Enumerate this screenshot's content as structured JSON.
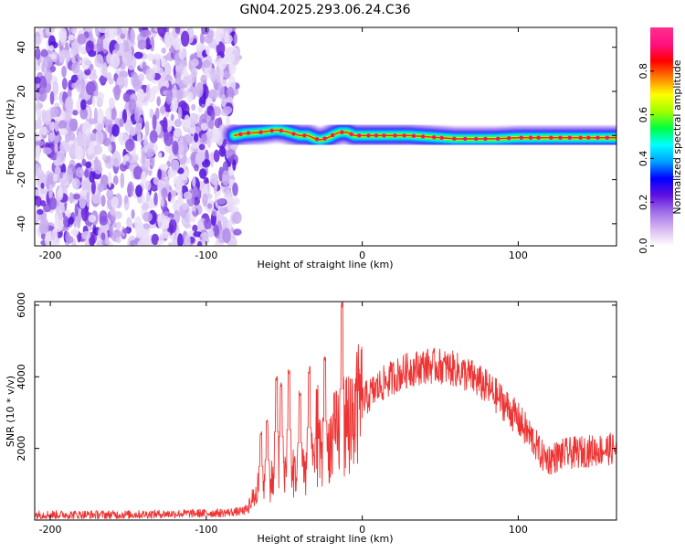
{
  "chart_data": [
    {
      "type": "heatmap",
      "title": "GN04.2025.293.06.24.C36",
      "xlabel": "Height of straight line (km)",
      "ylabel": "Frequency (Hz)",
      "xlim": [
        -210,
        163
      ],
      "ylim": [
        -50,
        49
      ],
      "xticks": [
        -200,
        -100,
        0,
        100
      ],
      "xtick_labels": [
        "-200",
        "-100",
        "0",
        "100"
      ],
      "yticks": [
        -40,
        -20,
        0,
        20,
        40
      ],
      "ytick_labels": [
        "-40",
        "-20",
        "0",
        "20",
        "40"
      ],
      "noise_region_x": [
        -210,
        -80
      ],
      "ridge": {
        "x": [
          -82,
          -75,
          -65,
          -55,
          -50,
          -45,
          -40,
          -35,
          -30,
          -27,
          -22,
          -18,
          -14,
          -10,
          -5,
          0,
          10,
          30,
          50,
          60,
          80,
          85,
          100,
          120,
          163
        ],
        "freq": [
          0,
          1,
          1.5,
          2.5,
          2,
          1,
          0,
          0,
          -1.5,
          -2,
          -1,
          0.5,
          1.5,
          1.5,
          0,
          0,
          0,
          0,
          -1,
          -1.5,
          -1.5,
          -1.5,
          -1,
          -1,
          -1
        ]
      },
      "colorbar": {
        "label": "Normalized spectral amplitude",
        "range": [
          0,
          1
        ],
        "ticks": [
          0,
          0.2,
          0.4,
          0.6,
          0.8
        ],
        "tick_labels": [
          "0.0",
          "0.2",
          "0.4",
          "0.6",
          "0.8"
        ],
        "colors": [
          "#ffffff",
          "#d8b8f0",
          "#a070e8",
          "#6010e0",
          "#0000ff",
          "#00a0ff",
          "#00ffff",
          "#00ff40",
          "#a0ff00",
          "#ffff00",
          "#ff8000",
          "#ff0000",
          "#ff1080",
          "#ff3090"
        ]
      }
    },
    {
      "type": "line",
      "xlabel": "Height of straight line (km)",
      "ylabel": "SNR (10 * v/v)",
      "xlim": [
        -210,
        163
      ],
      "ylim": [
        0,
        6100
      ],
      "xticks": [
        -200,
        -100,
        0,
        100
      ],
      "xtick_labels": [
        "-200",
        "-100",
        "0",
        "100"
      ],
      "yticks": [
        2000,
        4000,
        6000
      ],
      "ytick_labels": [
        "2000",
        "4000",
        "6000"
      ],
      "series": [
        {
          "name": "SNR",
          "color": "#ee3333",
          "envelope_x": [
            -210,
            -150,
            -90,
            -80,
            -75,
            -70,
            -65,
            -60,
            -50,
            -40,
            -30,
            -20,
            -10,
            0,
            10,
            20,
            30,
            40,
            50,
            60,
            70,
            80,
            90,
            100,
            110,
            115,
            120,
            130,
            140,
            150,
            163
          ],
          "envelope_y": [
            150,
            150,
            200,
            230,
            260,
            600,
            900,
            1100,
            1200,
            1400,
            1700,
            2200,
            2800,
            3300,
            3700,
            4000,
            4200,
            4300,
            4300,
            4200,
            4000,
            3700,
            3300,
            2800,
            2200,
            1800,
            1700,
            1850,
            1900,
            1950,
            2000
          ],
          "spikes": [
            {
              "x": -65,
              "y": 2500
            },
            {
              "x": -61,
              "y": 2800
            },
            {
              "x": -55,
              "y": 4100
            },
            {
              "x": -52,
              "y": 3900
            },
            {
              "x": -47,
              "y": 4200
            },
            {
              "x": -40,
              "y": 3600
            },
            {
              "x": -34,
              "y": 4300
            },
            {
              "x": -29,
              "y": 3800
            },
            {
              "x": -24,
              "y": 4600
            },
            {
              "x": -13,
              "y": 6100
            }
          ]
        }
      ]
    }
  ]
}
